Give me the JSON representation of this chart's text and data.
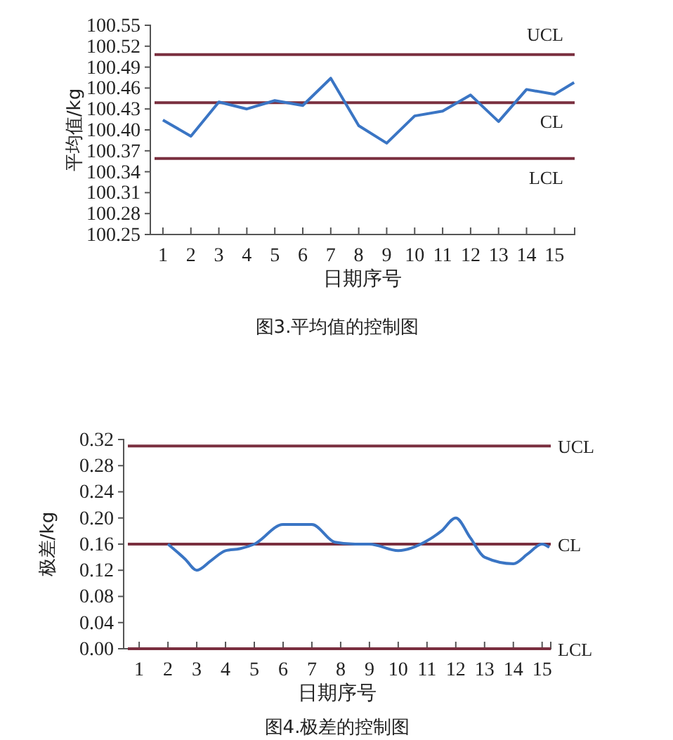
{
  "chart_data": [
    {
      "type": "line",
      "title": "图3.平均值的控制图",
      "xlabel": "日期序号",
      "ylabel": "平均值/kg",
      "x": [
        1,
        2,
        3,
        4,
        5,
        6,
        7,
        8,
        9,
        10,
        11,
        12,
        13,
        14,
        15,
        15.7
      ],
      "series": [
        {
          "color": "#3a75c4",
          "values": [
            100.414,
            100.391,
            100.44,
            100.43,
            100.442,
            100.435,
            100.474,
            100.406,
            100.381,
            100.42,
            100.427,
            100.45,
            100.412,
            100.458,
            100.451,
            100.468
          ]
        }
      ],
      "xlim": [
        0.55,
        15.72
      ],
      "xticks": [
        1,
        2,
        3,
        4,
        5,
        6,
        7,
        8,
        9,
        10,
        11,
        12,
        13,
        14,
        15
      ],
      "ylim": [
        100.25,
        100.55
      ],
      "yticks": [
        {
          "value": 100.25,
          "label": "100.25"
        },
        100.28,
        100.31,
        100.34,
        100.37,
        {
          "value": 100.4,
          "label": "100.40"
        },
        100.43,
        100.46,
        100.49,
        100.52,
        100.55
      ],
      "ref_lines": [
        {
          "axis": "y",
          "value": 100.508,
          "label": "UCL",
          "color": "#7a2f3f"
        },
        {
          "axis": "y",
          "value": 100.439,
          "label": "CL",
          "color": "#7a2f3f"
        },
        {
          "axis": "y",
          "value": 100.359,
          "label": "LCL",
          "color": "#7a2f3f"
        }
      ],
      "grid": false,
      "marker": "none",
      "line_style": "solid"
    },
    {
      "type": "line",
      "title": "图4.极差的控制图",
      "xlabel": "日期序号",
      "ylabel": "极差/kg",
      "x": [
        2,
        2.6,
        3,
        3.5,
        4,
        4.5,
        5,
        6,
        7,
        7.8,
        8.5,
        9,
        10,
        11,
        11.5,
        12,
        12.5,
        13,
        14,
        14.5,
        15,
        15.25
      ],
      "series": [
        {
          "color": "#3a75c4",
          "values": [
            0.16,
            0.137,
            0.12,
            0.135,
            0.15,
            0.153,
            0.16,
            0.19,
            0.19,
            0.163,
            0.16,
            0.16,
            0.15,
            0.165,
            0.18,
            0.2,
            0.17,
            0.14,
            0.13,
            0.145,
            0.16,
            0.155
          ]
        }
      ],
      "xlim": [
        0.46,
        15.3
      ],
      "xticks": [
        1,
        2,
        3,
        4,
        5,
        6,
        7,
        8,
        9,
        10,
        11,
        12,
        13,
        14,
        15
      ],
      "ylim": [
        0,
        0.32
      ],
      "yticks": [
        {
          "value": 0,
          "label": "0.00"
        },
        {
          "value": 0.04,
          "label": "0.04"
        },
        {
          "value": 0.08,
          "label": "0.08"
        },
        {
          "value": 0.12,
          "label": "0.12"
        },
        {
          "value": 0.16,
          "label": "0.16"
        },
        {
          "value": 0.2,
          "label": "0.20"
        },
        {
          "value": 0.24,
          "label": "0.24"
        },
        {
          "value": 0.28,
          "label": "0.28"
        },
        {
          "value": 0.32,
          "label": "0.32"
        }
      ],
      "ref_lines": [
        {
          "axis": "y",
          "value": 0.31,
          "label": "UCL",
          "color": "#7a2f3f"
        },
        {
          "axis": "y",
          "value": 0.16,
          "label": "CL",
          "color": "#7a2f3f"
        },
        {
          "axis": "y",
          "value": 0,
          "label": "LCL",
          "color": "#7a2f3f"
        }
      ],
      "grid": false,
      "marker": "none",
      "line_style": "solid"
    }
  ]
}
